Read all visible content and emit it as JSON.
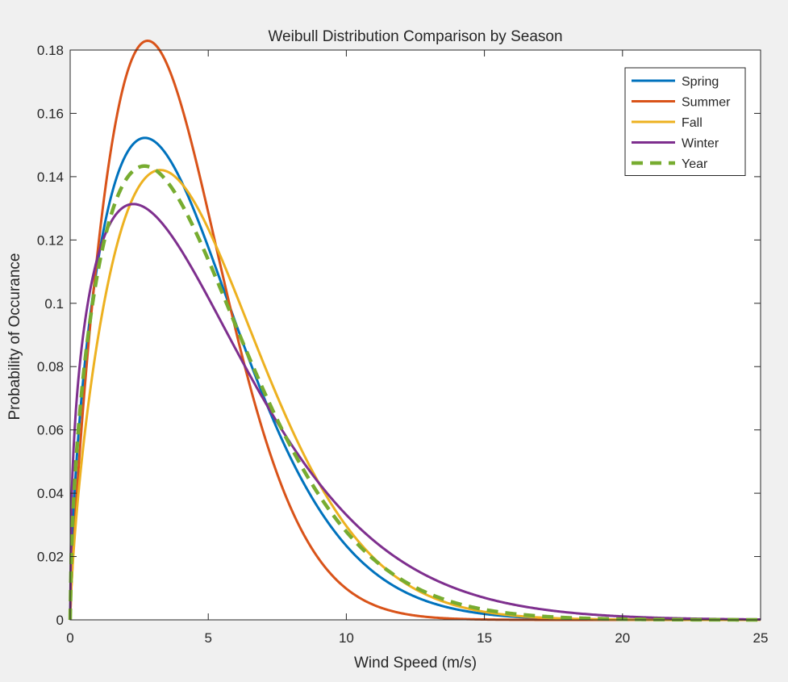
{
  "chart_data": {
    "type": "line",
    "title": "Weibull Distribution Comparison by Season",
    "xlabel": "Wind Speed (m/s)",
    "ylabel": "Probability of Occurance",
    "xlim": [
      0,
      25
    ],
    "ylim": [
      0,
      0.18
    ],
    "x_ticks": [
      0,
      5,
      10,
      15,
      20,
      25
    ],
    "x_tick_labels": [
      "0",
      "5",
      "10",
      "15",
      "20",
      "25"
    ],
    "y_ticks": [
      0,
      0.02,
      0.04,
      0.06,
      0.08,
      0.1,
      0.12,
      0.14,
      0.16,
      0.18
    ],
    "y_tick_labels": [
      "0",
      "0.02",
      "0.04",
      "0.06",
      "0.08",
      "0.1",
      "0.12",
      "0.14",
      "0.16",
      "0.18"
    ],
    "grid": false,
    "legend_position": "top-right",
    "distribution": "weibull",
    "series": [
      {
        "name": "Spring",
        "color": "#0072BD",
        "dashed": false,
        "shape_k": 1.6,
        "scale_c": 5.0,
        "peak": {
          "x": 2.5,
          "y": 0.143
        }
      },
      {
        "name": "Summer",
        "color": "#D95319",
        "dashed": false,
        "shape_k": 1.8,
        "scale_c": 4.4,
        "peak": {
          "x": 2.1,
          "y": 0.177
        }
      },
      {
        "name": "Fall",
        "color": "#EDB120",
        "dashed": false,
        "shape_k": 1.7,
        "scale_c": 5.5,
        "peak": {
          "x": 3.0,
          "y": 0.122
        }
      },
      {
        "name": "Winter",
        "color": "#7E2F8E",
        "dashed": false,
        "shape_k": 1.4,
        "scale_c": 5.6,
        "peak": {
          "x": 2.0,
          "y": 0.122
        }
      },
      {
        "name": "Year",
        "color": "#77AC30",
        "dashed": true,
        "shape_k": 1.55,
        "scale_c": 5.25,
        "peak": {
          "x": 2.3,
          "y": 0.137
        }
      }
    ]
  }
}
